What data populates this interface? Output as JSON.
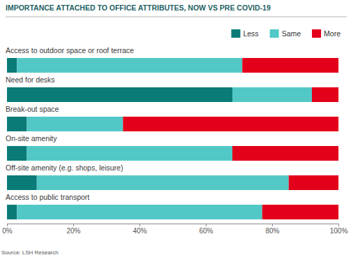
{
  "chart_data": {
    "type": "bar",
    "orientation": "horizontal",
    "stacked": true,
    "title": "IMPORTANCE ATTACHED TO OFFICE ATTRIBUTES, NOW VS PRE COVID-19",
    "annotations": [
      "Source: LSH Research"
    ],
    "categories": [
      "Access to outdoor space or roof terrace",
      "Need for desks",
      "Break-out space",
      "On-site amenity",
      "Off-site amenity (e.g. shops, leisure)",
      "Access to public transport"
    ],
    "series": [
      {
        "name": "Less",
        "color": "#0b7b78",
        "values": [
          3,
          68,
          6,
          6,
          9,
          3
        ]
      },
      {
        "name": "Same",
        "color": "#52c8c6",
        "values": [
          68,
          24,
          29,
          62,
          76,
          74
        ]
      },
      {
        "name": "More",
        "color": "#e3001b",
        "values": [
          29,
          8,
          65,
          32,
          15,
          23
        ]
      }
    ],
    "xlim": [
      0,
      100
    ],
    "xticks": [
      {
        "value": 0,
        "label": "0%"
      },
      {
        "value": 20,
        "label": "20%"
      },
      {
        "value": 40,
        "label": "40%"
      },
      {
        "value": 60,
        "label": "60%"
      },
      {
        "value": 80,
        "label": "80%"
      },
      {
        "value": 100,
        "label": "100%"
      }
    ],
    "grid": false,
    "legend": "top-right"
  }
}
